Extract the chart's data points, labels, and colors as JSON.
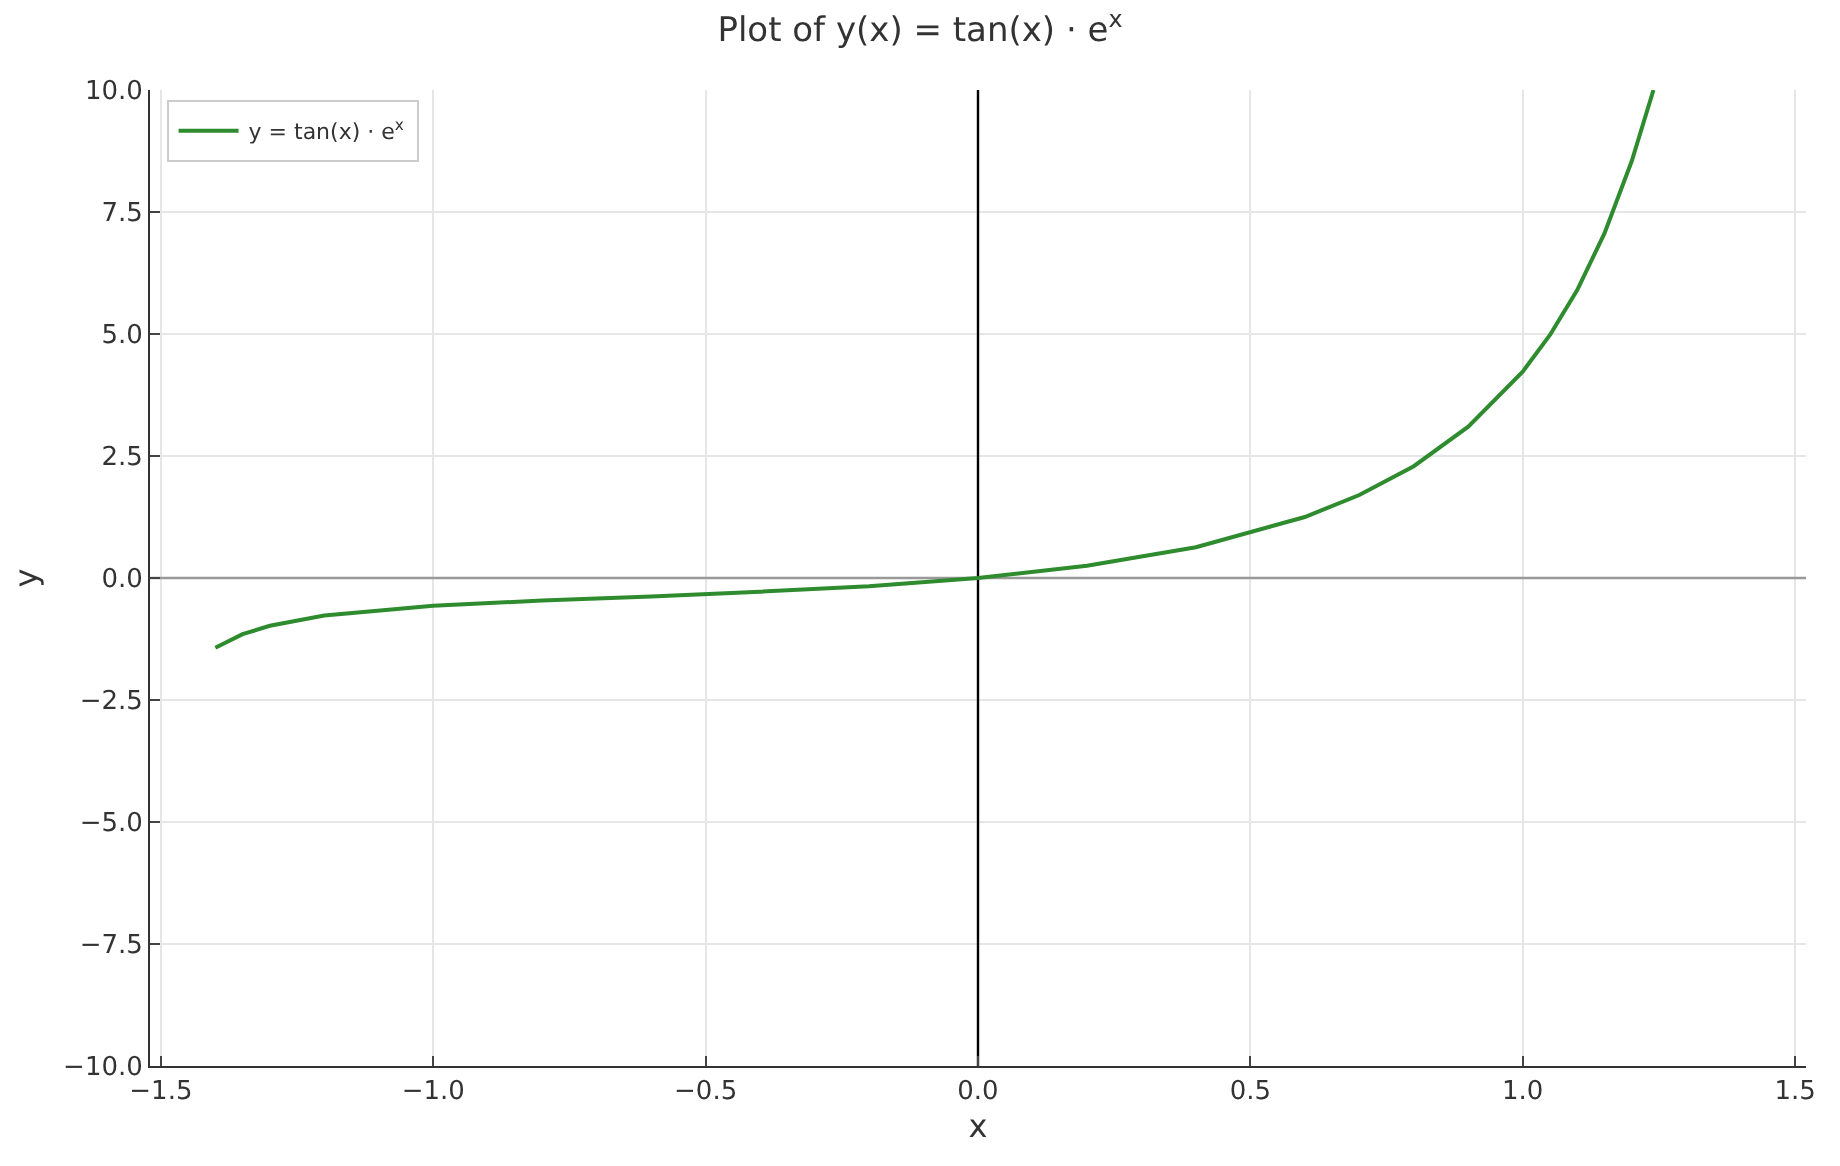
{
  "chart_data": {
    "type": "line",
    "title": "Plot of y(x) = tan(x) · e$^{x}$",
    "xlabel": "x",
    "ylabel": "y",
    "xlim": [
      -1.52,
      1.52
    ],
    "ylim": [
      -10,
      10
    ],
    "xticks": [
      {
        "value": -1.5,
        "label": "−1.5"
      },
      {
        "value": -1.0,
        "label": "−1.0"
      },
      {
        "value": -0.5,
        "label": "−0.5"
      },
      {
        "value": 0,
        "label": "0.0"
      },
      {
        "value": 0.5,
        "label": "0.5"
      },
      {
        "value": 1.0,
        "label": "1.0"
      },
      {
        "value": 1.5,
        "label": "1.5"
      }
    ],
    "yticks": [
      {
        "value": -10,
        "label": "−10.0"
      },
      {
        "value": -7.5,
        "label": "−7.5"
      },
      {
        "value": -5,
        "label": "−5.0"
      },
      {
        "value": -2.5,
        "label": "−2.5"
      },
      {
        "value": 0,
        "label": "0.0"
      },
      {
        "value": 2.5,
        "label": "2.5"
      },
      {
        "value": 5,
        "label": "5.0"
      },
      {
        "value": 7.5,
        "label": "7.5"
      },
      {
        "value": 10,
        "label": "10.0"
      }
    ],
    "grid": true,
    "legend": "top left",
    "marker": "none",
    "line_style": "solid",
    "ref_lines": [
      {
        "axis": "x",
        "value": 0,
        "color": "#000000"
      },
      {
        "axis": "y",
        "value": 0,
        "color": "#999999"
      }
    ],
    "series": [
      {
        "name": "y = tan(x) · e$^{x}$",
        "color": "#2e8b2e",
        "x": [
          -1.4,
          -1.35,
          -1.3,
          -1.2,
          -1.0,
          -0.8,
          -0.6,
          -0.4,
          -0.2,
          0,
          0.2,
          0.4,
          0.6,
          0.7,
          0.8,
          0.9,
          1.0,
          1.05,
          1.1,
          1.15,
          1.2,
          1.24
        ],
        "values": [
          -1.43,
          -1.15,
          -0.98,
          -0.77,
          -0.57,
          -0.46,
          -0.38,
          -0.28,
          -0.17,
          0,
          0.25,
          0.63,
          1.25,
          1.7,
          2.29,
          3.1,
          4.23,
          4.98,
          5.9,
          7.06,
          8.54,
          10.0
        ]
      }
    ]
  }
}
